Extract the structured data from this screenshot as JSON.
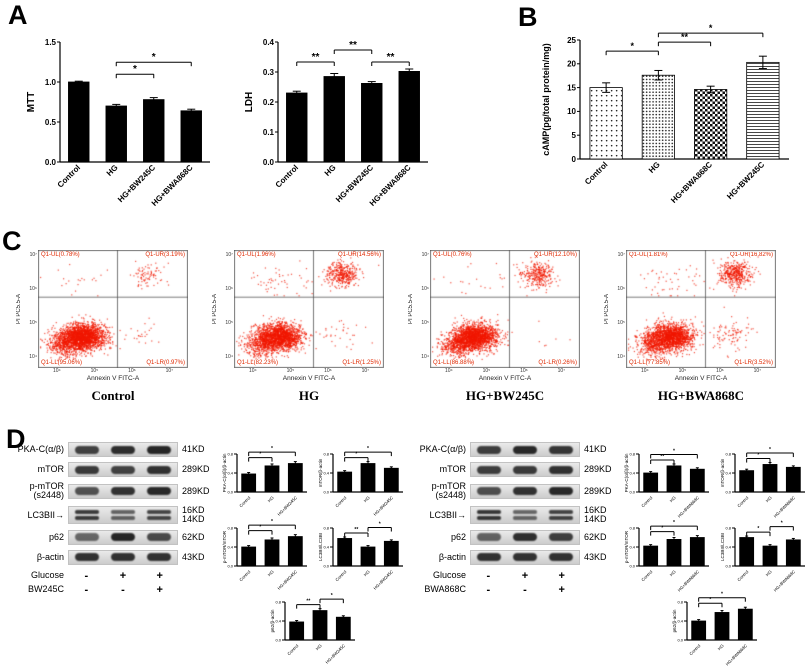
{
  "figure": {
    "background": "#ffffff",
    "accent_red": "#e02800",
    "bar_color": "#000000"
  },
  "panels": {
    "A": "A",
    "B": "B",
    "C": "C",
    "D": "D"
  },
  "chart_data": [
    {
      "id": "mtt",
      "type": "bar",
      "title": "",
      "ylabel": "MTT",
      "xlabel": "",
      "categories": [
        "Control",
        "HG",
        "HG+BW245C",
        "HG+BWA868C"
      ],
      "values": [
        1.0,
        0.7,
        0.78,
        0.64
      ],
      "errors": [
        0.01,
        0.02,
        0.025,
        0.02
      ],
      "ylim": [
        0,
        1.5
      ],
      "yticks": [
        0,
        0.5,
        1.0,
        1.5
      ],
      "significance": [
        {
          "from": 1,
          "to": 2,
          "label": "*"
        },
        {
          "from": 1,
          "to": 3,
          "label": "*"
        }
      ]
    },
    {
      "id": "ldh",
      "type": "bar",
      "title": "",
      "ylabel": "LDH",
      "xlabel": "",
      "categories": [
        "Control",
        "HG",
        "HG+BW245C",
        "HG+BWA868C"
      ],
      "values": [
        0.23,
        0.285,
        0.262,
        0.302
      ],
      "errors": [
        0.006,
        0.01,
        0.006,
        0.008
      ],
      "ylim": [
        0,
        0.4
      ],
      "yticks": [
        0,
        0.1,
        0.2,
        0.3,
        0.4
      ],
      "significance": [
        {
          "from": 0,
          "to": 1,
          "label": "**"
        },
        {
          "from": 1,
          "to": 2,
          "label": "**"
        },
        {
          "from": 2,
          "to": 3,
          "label": "**"
        }
      ]
    },
    {
      "id": "camp",
      "type": "bar",
      "title": "",
      "ylabel": "cAMP(pg/total protein/mg)",
      "xlabel": "",
      "categories": [
        "Control",
        "HG",
        "HG+BWA868C",
        "HG+BW245C"
      ],
      "values": [
        15.0,
        17.6,
        14.6,
        20.3
      ],
      "errors": [
        1.0,
        1.0,
        0.7,
        1.3
      ],
      "ylim": [
        0,
        25
      ],
      "yticks": [
        0,
        5,
        10,
        15,
        20,
        25
      ],
      "patterns": [
        "dots",
        "dots-dense",
        "checker",
        "hlines"
      ],
      "significance": [
        {
          "from": 0,
          "to": 1,
          "label": "*"
        },
        {
          "from": 1,
          "to": 2,
          "label": "**"
        },
        {
          "from": 1,
          "to": 3,
          "label": "*"
        }
      ]
    }
  ],
  "flow": {
    "xlabel": "Annexin V FITC-A",
    "ylabel": "PI PC5.5-A",
    "xticks": [
      "10⁴",
      "10⁵",
      "10⁶",
      "10⁷"
    ],
    "yticks": [
      "10⁷",
      "10⁶",
      "10⁵",
      "10⁴"
    ],
    "plots": [
      {
        "condition": "Control",
        "quadrants": {
          "ul": {
            "name": "Q1-UL",
            "pct": 0.78
          },
          "ur": {
            "name": "Q1-UR",
            "pct": 3.19
          },
          "ll": {
            "name": "Q1-LL",
            "pct": 95.06
          },
          "lr": {
            "name": "Q1-LR",
            "pct": 0.97
          }
        }
      },
      {
        "condition": "HG",
        "quadrants": {
          "ul": {
            "name": "Q1-UL",
            "pct": 1.96
          },
          "ur": {
            "name": "Q1-UR",
            "pct": 14.56
          },
          "ll": {
            "name": "Q1-LL",
            "pct": 82.23
          },
          "lr": {
            "name": "Q1-LR",
            "pct": 1.25
          }
        }
      },
      {
        "condition": "HG+BW245C",
        "quadrants": {
          "ul": {
            "name": "Q1-UL",
            "pct": 0.76
          },
          "ur": {
            "name": "Q1-UR",
            "pct": 12.1
          },
          "ll": {
            "name": "Q1-LL",
            "pct": 86.88
          },
          "lr": {
            "name": "Q1-LR",
            "pct": 0.26
          }
        }
      },
      {
        "condition": "HG+BWA868C",
        "quadrants": {
          "ul": {
            "name": "Q1-UL",
            "pct": 1.81
          },
          "ur": {
            "name": "Q1-UR",
            "pct": 16.82
          },
          "ll": {
            "name": "Q1-LL",
            "pct": 77.85
          },
          "lr": {
            "name": "Q1-LR",
            "pct": 3.52
          }
        }
      }
    ]
  },
  "western": {
    "arrow_icon": "→",
    "groups": [
      {
        "side": "left",
        "rows": [
          {
            "protein": [
              "PKA-C(α/β)"
            ],
            "kd": [
              "41KD"
            ],
            "bands": [
              0.78,
              0.88,
              0.92
            ]
          },
          {
            "protein": [
              "mTOR"
            ],
            "kd": [
              "289KD"
            ],
            "bands": [
              0.82,
              0.78,
              0.86
            ]
          },
          {
            "protein": [
              "p-mTOR",
              "(s2448)"
            ],
            "kd": [
              "289KD"
            ],
            "bands": [
              0.7,
              0.86,
              0.9
            ]
          },
          {
            "protein": [
              "LC3BII"
            ],
            "arrow": true,
            "kd": [
              "16KD",
              "14KD"
            ],
            "double": true,
            "bands": [
              0.82,
              0.62,
              0.76
            ]
          },
          {
            "protein": [
              "p62"
            ],
            "kd": [
              "62KD"
            ],
            "bands": [
              0.6,
              0.92,
              0.74
            ]
          },
          {
            "protein": [
              "β-actin"
            ],
            "kd": [
              "43KD"
            ],
            "bands": [
              0.86,
              0.86,
              0.86
            ]
          }
        ],
        "treatments": [
          {
            "label": "Glucose",
            "lanes": [
              "-",
              "+",
              "+"
            ]
          },
          {
            "label": "BW245C",
            "lanes": [
              "-",
              "-",
              "+"
            ]
          }
        ],
        "charts": [
          {
            "id": "l1",
            "type": "bar",
            "ylabel": "PKA-C(α/β)/β-actin",
            "categories": [
              "Control",
              "HG",
              "HG+BW245C"
            ],
            "values": [
              0.38,
              0.55,
              0.6
            ],
            "errors": [
              0.03,
              0.04,
              0.04
            ],
            "ylim": [
              0,
              0.8
            ],
            "yticks": [
              0,
              0.4,
              0.8
            ],
            "significance": [
              {
                "from": 0,
                "to": 1,
                "label": "*"
              },
              {
                "from": 0,
                "to": 2,
                "label": "*"
              }
            ]
          },
          {
            "id": "l2",
            "type": "bar",
            "ylabel": "mTOR/β-actin",
            "categories": [
              "Control",
              "HG",
              "HG+BW245C"
            ],
            "values": [
              0.42,
              0.6,
              0.5
            ],
            "errors": [
              0.03,
              0.04,
              0.03
            ],
            "ylim": [
              0,
              0.8
            ],
            "yticks": [
              0,
              0.4,
              0.8
            ],
            "significance": [
              {
                "from": 0,
                "to": 1,
                "label": "*"
              },
              {
                "from": 0,
                "to": 2,
                "label": "*"
              }
            ]
          },
          {
            "id": "l3",
            "type": "bar",
            "ylabel": "p-mTOR/mTOR",
            "categories": [
              "Control",
              "HG",
              "HG+BW245C"
            ],
            "values": [
              0.4,
              0.55,
              0.62
            ],
            "errors": [
              0.03,
              0.04,
              0.04
            ],
            "ylim": [
              0,
              0.8
            ],
            "yticks": [
              0,
              0.4,
              0.8
            ],
            "significance": [
              {
                "from": 0,
                "to": 1,
                "label": "*"
              },
              {
                "from": 0,
                "to": 2,
                "label": "*"
              }
            ]
          },
          {
            "id": "l4",
            "type": "bar",
            "ylabel": "LC3BII/LC3BI",
            "categories": [
              "Control",
              "HG",
              "HG+BW245C"
            ],
            "values": [
              0.58,
              0.4,
              0.52
            ],
            "errors": [
              0.03,
              0.03,
              0.03
            ],
            "ylim": [
              0,
              0.8
            ],
            "yticks": [
              0,
              0.4,
              0.8
            ],
            "significance": [
              {
                "from": 0,
                "to": 1,
                "label": "**"
              },
              {
                "from": 1,
                "to": 2,
                "label": "*"
              }
            ]
          },
          {
            "id": "l5",
            "type": "bar",
            "ylabel": "p62/β-actin",
            "categories": [
              "Control",
              "HG",
              "HG+BW245C"
            ],
            "values": [
              0.38,
              0.62,
              0.48
            ],
            "errors": [
              0.03,
              0.04,
              0.03
            ],
            "ylim": [
              0,
              0.8
            ],
            "yticks": [
              0,
              0.4,
              0.8
            ],
            "significance": [
              {
                "from": 0,
                "to": 1,
                "label": "**"
              },
              {
                "from": 1,
                "to": 2,
                "label": "*"
              }
            ]
          }
        ]
      },
      {
        "side": "right",
        "rows": [
          {
            "protein": [
              "PKA-C(α/β)"
            ],
            "kd": [
              "41KD"
            ],
            "bands": [
              0.8,
              0.9,
              0.84
            ]
          },
          {
            "protein": [
              "mTOR"
            ],
            "kd": [
              "289KD"
            ],
            "bands": [
              0.8,
              0.82,
              0.86
            ]
          },
          {
            "protein": [
              "p-mTOR",
              "(s2448)"
            ],
            "kd": [
              "289KD"
            ],
            "bands": [
              0.72,
              0.86,
              0.9
            ]
          },
          {
            "protein": [
              "LC3BII"
            ],
            "arrow": true,
            "kd": [
              "16KD",
              "14KD"
            ],
            "double": true,
            "bands": [
              0.84,
              0.6,
              0.78
            ]
          },
          {
            "protein": [
              "p62"
            ],
            "kd": [
              "62KD"
            ],
            "bands": [
              0.62,
              0.88,
              0.8
            ]
          },
          {
            "protein": [
              "β-actin"
            ],
            "kd": [
              "43KD"
            ],
            "bands": [
              0.86,
              0.86,
              0.86
            ]
          }
        ],
        "treatments": [
          {
            "label": "Glucose",
            "lanes": [
              "-",
              "+",
              "+"
            ]
          },
          {
            "label": "BWA868C",
            "lanes": [
              "-",
              "-",
              "+"
            ]
          }
        ],
        "charts": [
          {
            "id": "r1",
            "type": "bar",
            "ylabel": "PKA-C(α/β)/β-actin",
            "categories": [
              "Control",
              "HG",
              "HG+BWA868C"
            ],
            "values": [
              0.4,
              0.55,
              0.48
            ],
            "errors": [
              0.03,
              0.04,
              0.03
            ],
            "ylim": [
              0,
              0.8
            ],
            "yticks": [
              0,
              0.4,
              0.8
            ],
            "significance": [
              {
                "from": 0,
                "to": 1,
                "label": "**"
              },
              {
                "from": 0,
                "to": 2,
                "label": "*"
              }
            ]
          },
          {
            "id": "r2",
            "type": "bar",
            "ylabel": "mTOR/β-actin",
            "categories": [
              "Control",
              "HG",
              "HG+BWA868C"
            ],
            "values": [
              0.45,
              0.58,
              0.52
            ],
            "errors": [
              0.03,
              0.04,
              0.03
            ],
            "ylim": [
              0,
              0.8
            ],
            "yticks": [
              0,
              0.4,
              0.8
            ],
            "significance": [
              {
                "from": 0,
                "to": 1,
                "label": "*"
              },
              {
                "from": 0,
                "to": 2,
                "label": "*"
              }
            ]
          },
          {
            "id": "r3",
            "type": "bar",
            "ylabel": "p-mTOR/mTOR",
            "categories": [
              "Control",
              "HG",
              "HG+BWA868C"
            ],
            "values": [
              0.42,
              0.56,
              0.6
            ],
            "errors": [
              0.03,
              0.04,
              0.04
            ],
            "ylim": [
              0,
              0.8
            ],
            "yticks": [
              0,
              0.4,
              0.8
            ],
            "significance": [
              {
                "from": 0,
                "to": 1,
                "label": "*"
              },
              {
                "from": 0,
                "to": 2,
                "label": "*"
              }
            ]
          },
          {
            "id": "r4",
            "type": "bar",
            "ylabel": "LC3BII/LC3BI",
            "categories": [
              "Control",
              "HG",
              "HG+BWA868C"
            ],
            "values": [
              0.6,
              0.42,
              0.55
            ],
            "errors": [
              0.03,
              0.03,
              0.03
            ],
            "ylim": [
              0,
              0.8
            ],
            "yticks": [
              0,
              0.4,
              0.8
            ],
            "significance": [
              {
                "from": 0,
                "to": 1,
                "label": "*"
              },
              {
                "from": 1,
                "to": 2,
                "label": "*"
              }
            ]
          },
          {
            "id": "r5",
            "type": "bar",
            "ylabel": "p62/β-actin",
            "categories": [
              "Control",
              "HG",
              "HG+BWA868C"
            ],
            "values": [
              0.4,
              0.58,
              0.65
            ],
            "errors": [
              0.03,
              0.04,
              0.04
            ],
            "ylim": [
              0,
              0.8
            ],
            "yticks": [
              0,
              0.4,
              0.8
            ],
            "significance": [
              {
                "from": 0,
                "to": 1,
                "label": "*"
              },
              {
                "from": 0,
                "to": 2,
                "label": "*"
              }
            ]
          }
        ]
      }
    ]
  }
}
